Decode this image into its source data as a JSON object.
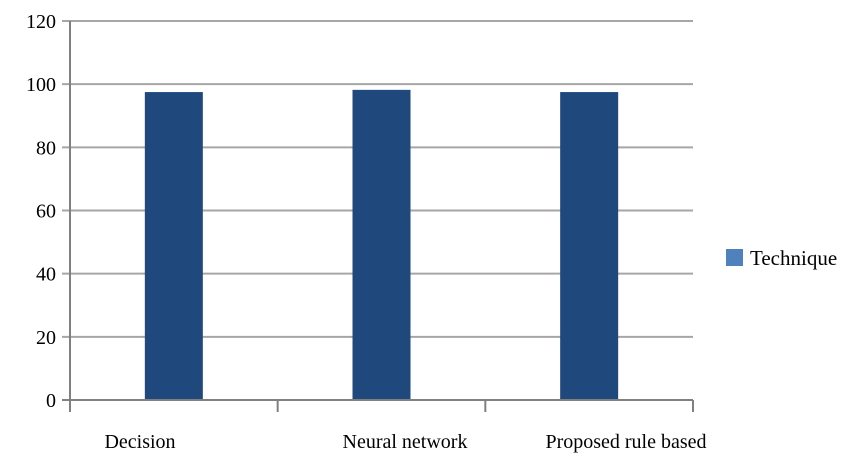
{
  "chart_data": {
    "type": "bar",
    "categories": [
      "Decision",
      "Neural network",
      "Proposed rule based"
    ],
    "series": [
      {
        "name": "Technique",
        "values": [
          97.5,
          98.2,
          97.5
        ]
      }
    ],
    "y_ticks": [
      "0",
      "20",
      "40",
      "60",
      "80",
      "100",
      "120"
    ],
    "ylim": [
      0,
      120
    ],
    "grid": true,
    "legend_position": "right",
    "bar_color": "#1F497D",
    "legend_swatch_color": "#4F81BD",
    "gridline_color": "#A6A6A6",
    "axis_color": "#808080"
  }
}
